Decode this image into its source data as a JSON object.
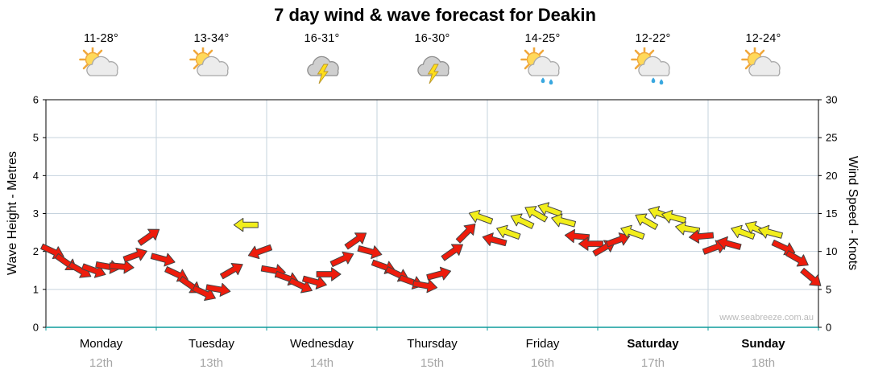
{
  "title": "7 day wind & wave forecast for Deakin",
  "watermark": "www.seabreeze.com.au",
  "days": [
    {
      "name": "Monday",
      "date": "12th",
      "temp": "11-28°",
      "icon": "sun-cloud",
      "bold": false
    },
    {
      "name": "Tuesday",
      "date": "13th",
      "temp": "13-34°",
      "icon": "sun-cloud",
      "bold": false
    },
    {
      "name": "Wednesday",
      "date": "14th",
      "temp": "16-31°",
      "icon": "storm-cloud",
      "bold": false
    },
    {
      "name": "Thursday",
      "date": "15th",
      "temp": "16-30°",
      "icon": "storm-cloud",
      "bold": false
    },
    {
      "name": "Friday",
      "date": "16th",
      "temp": "14-25°",
      "icon": "sun-cloud-rain",
      "bold": false
    },
    {
      "name": "Saturday",
      "date": "17th",
      "temp": "12-22°",
      "icon": "sun-cloud-rain",
      "bold": true
    },
    {
      "name": "Sunday",
      "date": "18th",
      "temp": "12-24°",
      "icon": "sun-cloud",
      "bold": true
    }
  ],
  "left_axis": {
    "label": "Wave Height - Metres",
    "min": 0,
    "max": 6,
    "ticks": [
      0,
      1,
      2,
      3,
      4,
      5,
      6
    ]
  },
  "right_axis": {
    "label": "Wind Speed - Knots",
    "min": 0,
    "max": 30,
    "ticks": [
      0,
      5,
      10,
      15,
      20,
      25,
      30
    ]
  },
  "chart_data": {
    "type": "wind-arrow-series",
    "x_unit": "3-hourly",
    "points_per_day": 8,
    "categories": [
      "Monday 12th",
      "Tuesday 13th",
      "Wednesday 14th",
      "Thursday 15th",
      "Friday 16th",
      "Saturday 17th",
      "Sunday 18th"
    ],
    "wind_speed_axis": "right (knots, 0-30)",
    "wave_axis": "left (metres, 0-6)",
    "wind_knots": [
      10,
      8.5,
      7.5,
      7.5,
      8,
      8,
      9.5,
      12,
      9,
      7,
      5.5,
      4.5,
      5,
      7.5,
      13.5,
      10,
      7.5,
      6.5,
      5.5,
      6,
      7,
      9,
      11.5,
      10,
      8,
      7,
      6,
      5.5,
      7,
      10,
      12.5,
      14.5,
      11.5,
      12.5,
      14,
      15,
      15.5,
      14,
      12,
      11,
      10.5,
      11.5,
      12.5,
      14,
      15,
      14.5,
      13,
      12,
      10.5,
      11,
      12.5,
      13,
      12.5,
      10.5,
      9,
      6.5
    ],
    "wind_dir_deg": [
      25,
      35,
      30,
      20,
      10,
      5,
      -20,
      -35,
      15,
      25,
      35,
      25,
      10,
      -30,
      180,
      160,
      10,
      20,
      25,
      15,
      0,
      -25,
      -35,
      15,
      20,
      25,
      20,
      10,
      -15,
      -35,
      -45,
      200,
      195,
      200,
      205,
      210,
      200,
      195,
      185,
      180,
      -30,
      -20,
      200,
      210,
      200,
      195,
      190,
      175,
      -20,
      195,
      200,
      205,
      195,
      25,
      30,
      40
    ],
    "arrow_colors": [
      "r",
      "r",
      "r",
      "r",
      "r",
      "r",
      "r",
      "r",
      "r",
      "r",
      "r",
      "r",
      "r",
      "r",
      "y",
      "r",
      "r",
      "r",
      "r",
      "r",
      "r",
      "r",
      "r",
      "r",
      "r",
      "r",
      "r",
      "r",
      "r",
      "r",
      "r",
      "y",
      "r",
      "y",
      "y",
      "y",
      "y",
      "y",
      "r",
      "r",
      "r",
      "r",
      "y",
      "y",
      "y",
      "y",
      "y",
      "r",
      "r",
      "r",
      "y",
      "y",
      "y",
      "r",
      "r",
      "r"
    ],
    "color_legend": {
      "r": "#ee1c0c",
      "y": "#f2ee1b"
    },
    "colors": {
      "grid": "#c6d3de",
      "axis": "#000000",
      "zero_line": "#0f9b9b",
      "arrow_outline": "#444444"
    }
  }
}
